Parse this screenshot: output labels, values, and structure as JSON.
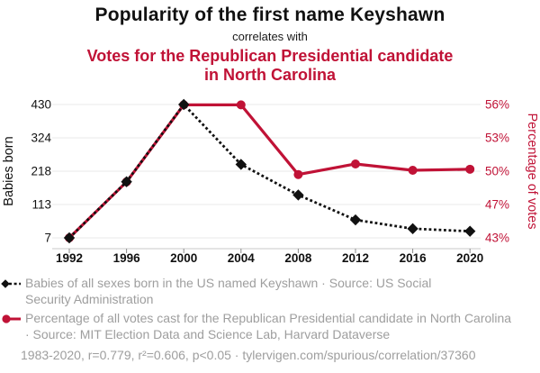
{
  "header": {
    "title": "Popularity of the first name Keyshawn",
    "connector": "correlates with",
    "subtitle": "Votes for the Republican Presidential candidate in North Carolina"
  },
  "colors": {
    "accent_red": "#c01236",
    "series_black": "#111111",
    "legend_gray": "#9e9e9e",
    "gridline": "#e9e9e9",
    "axis_line": "#c9c9c9"
  },
  "chart_data": {
    "type": "line",
    "x": [
      1992,
      1996,
      2000,
      2004,
      2008,
      2012,
      2016,
      2020
    ],
    "x_tick_labels": [
      "1992",
      "1996",
      "2000",
      "2004",
      "2008",
      "2012",
      "2016",
      "2020"
    ],
    "grid": "horizontal",
    "left_axis": {
      "label": "Babies born",
      "tick_labels": [
        "7",
        "113",
        "218",
        "324",
        "430"
      ],
      "min": 7,
      "max": 430
    },
    "right_axis": {
      "label": "Percentage of votes",
      "tick_labels": [
        "43%",
        "47%",
        "50%",
        "53%",
        "56%"
      ],
      "min": 43.4,
      "max": 56.03
    },
    "series": [
      {
        "name": "Babies of all sexes born in the US named Keyshawn",
        "axis": "left",
        "color": "#111111",
        "line_style": "dotted",
        "marker": "diamond",
        "values": [
          7,
          185,
          430,
          240,
          143,
          64,
          36,
          28
        ]
      },
      {
        "name": "Percentage of all votes cast for the Republican Presidential candidate in North Carolina",
        "axis": "right",
        "color": "#c01236",
        "line_style": "solid",
        "marker": "circle",
        "values": [
          43.4,
          48.7,
          56.0,
          56.0,
          49.4,
          50.4,
          49.8,
          49.9
        ]
      }
    ]
  },
  "legend": {
    "series1": "Babies of all sexes born in the US named Keyshawn · Source: US Social Security Administration",
    "series2": "Percentage of all votes cast for the Republican Presidential candidate in North Carolina · Source: MIT Election Data and Science Lab, Harvard Dataverse"
  },
  "footer": {
    "text": "1983-2020, r=0.779, r²=0.606, p<0.05 · tylervigen.com/spurious/correlation/37360"
  }
}
